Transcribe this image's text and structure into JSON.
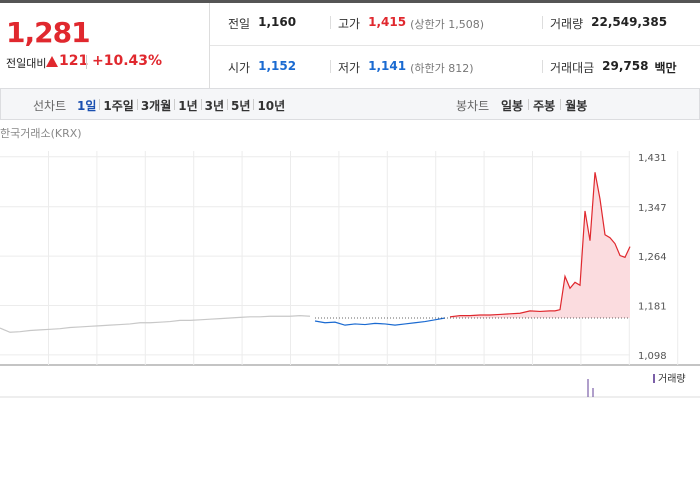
{
  "header": {
    "price": "1,281",
    "change_label": "전일대비",
    "change": "121",
    "rate": "+10.43%"
  },
  "stats": [
    [
      {
        "label": "전일",
        "value": "1,160"
      },
      {
        "label": "고가",
        "value": "1,415",
        "note": "(상한가 1,508)"
      },
      {
        "label": "거래량",
        "value": "22,549,385"
      }
    ],
    [
      {
        "label": "시가",
        "value": "1,152"
      },
      {
        "label": "저가",
        "value": "1,141",
        "note": "(하한가 812)"
      },
      {
        "label": "거래대금",
        "value": "29,758",
        "unit": "백만"
      }
    ]
  ],
  "tabs": {
    "line_label": "선차트",
    "line": [
      "1일",
      "1주일",
      "3개월",
      "1년",
      "3년",
      "5년",
      "10년"
    ],
    "candle_label": "봉차트",
    "candle": [
      "일봉",
      "주봉",
      "월봉"
    ]
  },
  "chart_data": {
    "type": "line",
    "source": "한국거래소(KRX)",
    "ylim": [
      1081,
      1434
    ],
    "yticks": [
      {
        "value": 1431,
        "label": "1,431"
      },
      {
        "value": 1347,
        "label": "1,347"
      },
      {
        "value": 1264,
        "label": "1,264"
      },
      {
        "value": 1181,
        "label": "1,181"
      },
      {
        "value": 1098,
        "label": "1,098"
      }
    ],
    "xlim": [
      0,
      690
    ],
    "grid": true,
    "base_value": 1160,
    "series": [
      {
        "color": "#c8c8c8",
        "x": [
          0,
          10,
          20,
          30,
          40,
          50,
          60,
          70,
          80,
          90,
          100,
          110,
          120,
          130,
          140,
          150,
          160,
          170,
          180,
          190,
          200,
          210,
          220,
          230,
          240,
          250,
          260,
          270,
          280,
          290,
          300,
          310
        ],
        "values": [
          1143,
          1136,
          1137,
          1139,
          1140,
          1141,
          1142,
          1144,
          1145,
          1146,
          1147,
          1148,
          1149,
          1150,
          1152,
          1152,
          1153,
          1154,
          1156,
          1156,
          1157,
          1158,
          1159,
          1160,
          1161,
          1162,
          1162,
          1163,
          1163,
          1163,
          1164,
          1163
        ]
      },
      {
        "color": "#1a6ad1",
        "x": [
          315,
          325,
          335,
          345,
          355,
          365,
          375,
          385,
          395,
          405,
          415,
          425,
          435,
          445
        ],
        "values": [
          1155,
          1152,
          1153,
          1148,
          1150,
          1149,
          1151,
          1150,
          1148,
          1150,
          1152,
          1154,
          1157,
          1160
        ]
      },
      {
        "color": "#e0282e",
        "fill": "#fbdcdf",
        "x": [
          450,
          460,
          470,
          480,
          490,
          500,
          510,
          520,
          530,
          540,
          550,
          555,
          560,
          565,
          570,
          575,
          580,
          585,
          590,
          595,
          600,
          605,
          610,
          615,
          620,
          625,
          630
        ],
        "values": [
          1162,
          1164,
          1164,
          1165,
          1165,
          1166,
          1167,
          1168,
          1172,
          1171,
          1172,
          1172,
          1174,
          1230,
          1210,
          1220,
          1215,
          1340,
          1290,
          1405,
          1360,
          1300,
          1295,
          1285,
          1265,
          1262,
          1280
        ]
      }
    ],
    "volume": {
      "label": "거래량",
      "color": "#7b5fa8",
      "ylim": [
        0,
        4500000
      ],
      "x": [
        588,
        593
      ],
      "values": [
        3000000,
        1500000
      ]
    }
  }
}
